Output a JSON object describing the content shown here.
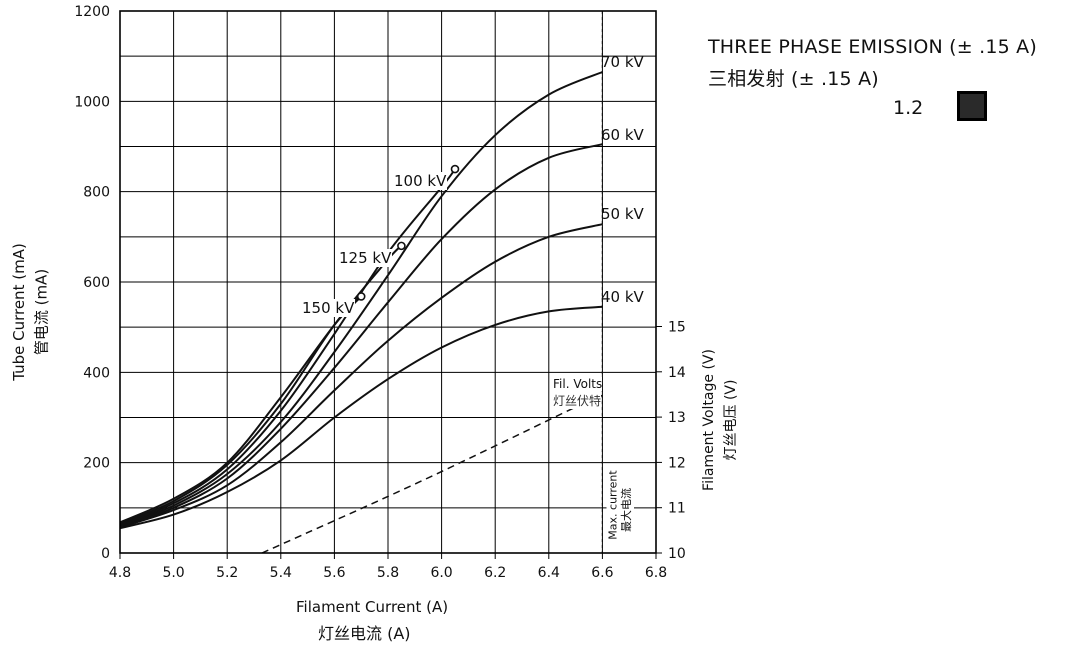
{
  "legend": {
    "title_en": "THREE PHASE EMISSION (± .15 A)",
    "title_zh": "三相发射 (± .15 A)",
    "item_label": "1.2",
    "item_color": "#2a2a2a"
  },
  "chart_data": {
    "type": "line",
    "title": "",
    "xlabel": "Filament Current (A)",
    "xlabel_zh": "灯丝电流 (A)",
    "ylabel": "Tube Current (mA)",
    "ylabel_zh": "管电流 (mA)",
    "y2label": "Filament Voltage (V)",
    "y2label_zh": "灯丝电压 (V)",
    "xlim": [
      4.8,
      6.8
    ],
    "ylim": [
      0,
      1200
    ],
    "y2lim": [
      10,
      15
    ],
    "x_ticks": [
      "4.8",
      "5.0",
      "5.2",
      "5.4",
      "5.6",
      "5.8",
      "6.0",
      "6.2",
      "6.4",
      "6.6",
      "6.8"
    ],
    "y_ticks": [
      "0",
      "200",
      "400",
      "600",
      "800",
      "1000",
      "1200"
    ],
    "y2_ticks": [
      "10",
      "11",
      "12",
      "13",
      "14",
      "15"
    ],
    "grid": true,
    "series": [
      {
        "name": "40 kV",
        "x": [
          4.8,
          5.0,
          5.2,
          5.4,
          5.6,
          5.8,
          6.0,
          6.2,
          6.4,
          6.6
        ],
        "y": [
          55,
          85,
          135,
          205,
          300,
          385,
          455,
          505,
          535,
          545
        ]
      },
      {
        "name": "50 kV",
        "x": [
          4.8,
          5.0,
          5.2,
          5.4,
          5.6,
          5.8,
          6.0,
          6.2,
          6.4,
          6.6
        ],
        "y": [
          57,
          95,
          150,
          245,
          360,
          470,
          565,
          645,
          700,
          728
        ]
      },
      {
        "name": "60 kV",
        "x": [
          4.8,
          5.0,
          5.2,
          5.4,
          5.6,
          5.8,
          6.0,
          6.2,
          6.4,
          6.6
        ],
        "y": [
          58,
          100,
          165,
          275,
          410,
          555,
          695,
          805,
          875,
          905
        ]
      },
      {
        "name": "70 kV",
        "x": [
          4.8,
          5.0,
          5.2,
          5.4,
          5.6,
          5.8,
          6.0,
          6.2,
          6.4,
          6.6
        ],
        "y": [
          60,
          105,
          175,
          290,
          445,
          615,
          790,
          925,
          1015,
          1065
        ]
      },
      {
        "name": "100 kV",
        "x": [
          4.8,
          5.0,
          5.2,
          5.4,
          5.6,
          5.8,
          6.0,
          6.05
        ],
        "y": [
          62,
          110,
          185,
          315,
          485,
          665,
          810,
          850
        ],
        "end_marker": true
      },
      {
        "name": "125 kV",
        "x": [
          4.8,
          5.0,
          5.2,
          5.4,
          5.6,
          5.8,
          5.85
        ],
        "y": [
          65,
          115,
          195,
          330,
          505,
          650,
          680
        ],
        "end_marker": true
      },
      {
        "name": "150 kV",
        "x": [
          4.8,
          5.0,
          5.2,
          5.4,
          5.6,
          5.7
        ],
        "y": [
          68,
          120,
          200,
          345,
          505,
          568
        ],
        "end_marker": true
      }
    ],
    "filament_voltage": {
      "name": "Fil. Volts",
      "name_zh": "灯丝伏特",
      "axis": "right",
      "x": [
        5.33,
        5.5,
        5.7,
        5.9,
        6.1,
        6.3,
        6.5,
        6.6
      ],
      "y": [
        10.0,
        10.45,
        10.98,
        11.52,
        12.08,
        12.65,
        13.22,
        13.48
      ]
    },
    "max_current": {
      "x": 6.6,
      "label": "Max. current",
      "label_zh": "最大电流"
    }
  }
}
